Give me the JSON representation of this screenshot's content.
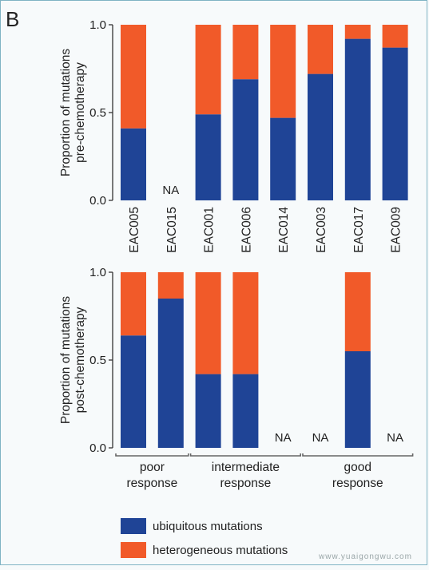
{
  "figure": {
    "panel_letter": "B",
    "watermark": "www.yuaigongwu.com"
  },
  "colors": {
    "ubiquitous": "#1f4496",
    "heterogeneous": "#f15a29",
    "axis": "#333333",
    "background": "#f7fafb"
  },
  "chart_data": [
    {
      "type": "bar",
      "stacked": true,
      "ylabel": "Proportion of mutations pre-chemotherapy",
      "ylabel_lines": [
        "Proportion of mutations",
        "pre-chemotherapy"
      ],
      "ylim": [
        0,
        1
      ],
      "yticks": [
        "0.0",
        "0.5",
        "1.0"
      ],
      "categories": [
        "EAC005",
        "EAC015",
        "EAC001",
        "EAC006",
        "EAC014",
        "EAC003",
        "EAC017",
        "EAC009"
      ],
      "series": [
        {
          "name": "ubiquitous mutations",
          "values": [
            0.41,
            null,
            0.49,
            0.69,
            0.47,
            0.72,
            0.92,
            0.87
          ]
        },
        {
          "name": "heterogeneous mutations",
          "values": [
            0.59,
            null,
            0.51,
            0.31,
            0.53,
            0.28,
            0.08,
            0.13
          ]
        }
      ],
      "na_label": "NA"
    },
    {
      "type": "bar",
      "stacked": true,
      "ylabel": "Proportion of mutations post-chemotherapy",
      "ylabel_lines": [
        "Proportion of mutations",
        "post-chemotherapy"
      ],
      "ylim": [
        0,
        1
      ],
      "yticks": [
        "0.0",
        "0.5",
        "1.0"
      ],
      "categories": [
        "EAC005",
        "EAC015",
        "EAC001",
        "EAC006",
        "EAC014",
        "EAC003",
        "EAC017",
        "EAC009"
      ],
      "series": [
        {
          "name": "ubiquitous mutations",
          "values": [
            0.64,
            0.85,
            0.42,
            0.42,
            null,
            null,
            0.55,
            null
          ]
        },
        {
          "name": "heterogeneous mutations",
          "values": [
            0.36,
            0.15,
            0.58,
            0.58,
            null,
            null,
            0.45,
            null
          ]
        }
      ],
      "na_label": "NA",
      "groups": [
        {
          "lines": [
            "poor",
            "response"
          ],
          "start": 0,
          "end": 1
        },
        {
          "lines": [
            "intermediate",
            "response"
          ],
          "start": 2,
          "end": 4
        },
        {
          "lines": [
            "good",
            "response"
          ],
          "start": 5,
          "end": 7
        }
      ]
    }
  ],
  "legend": [
    {
      "label": "ubiquitous mutations",
      "color": "#1f4496"
    },
    {
      "label": "heterogeneous mutations",
      "color": "#f15a29"
    }
  ]
}
